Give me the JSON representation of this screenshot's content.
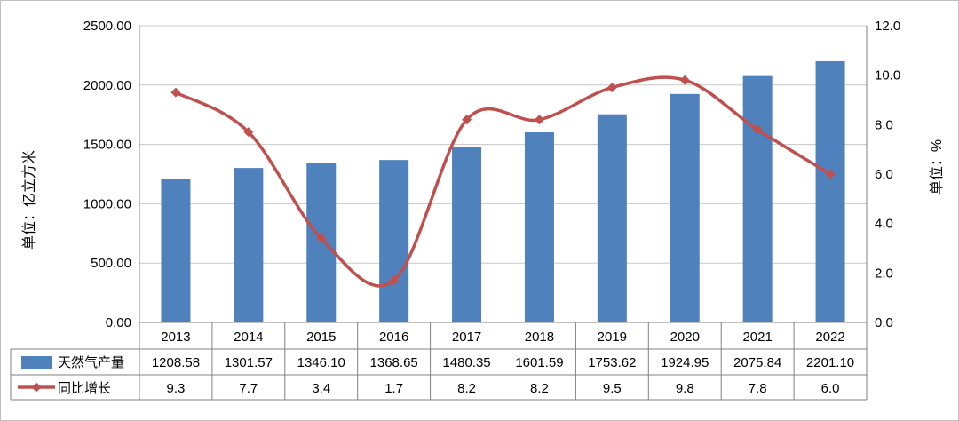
{
  "chart_data": {
    "type": "bar",
    "categories": [
      "2013",
      "2014",
      "2015",
      "2016",
      "2017",
      "2018",
      "2019",
      "2020",
      "2021",
      "2022"
    ],
    "series": [
      {
        "name": "天然气产量",
        "type": "bar",
        "axis": "left",
        "color": "#4f81bd",
        "values": [
          1208.58,
          1301.57,
          1346.1,
          1368.65,
          1480.35,
          1601.59,
          1753.62,
          1924.95,
          2075.84,
          2201.1
        ],
        "labels": [
          "1208.58",
          "1301.57",
          "1346.10",
          "1368.65",
          "1480.35",
          "1601.59",
          "1753.62",
          "1924.95",
          "2075.84",
          "2201.10"
        ]
      },
      {
        "name": "同比增长",
        "type": "line",
        "axis": "right",
        "color": "#c0504d",
        "values": [
          9.3,
          7.7,
          3.4,
          1.7,
          8.2,
          8.2,
          9.5,
          9.8,
          7.8,
          6.0
        ],
        "labels": [
          "9.3",
          "7.7",
          "3.4",
          "1.7",
          "8.2",
          "8.2",
          "9.5",
          "9.8",
          "7.8",
          "6.0"
        ]
      }
    ],
    "ylabel": "单位：亿立方米",
    "y2label": "单位：%",
    "ylim": [
      0,
      2500
    ],
    "y2lim": [
      0,
      12
    ],
    "yticks": [
      "0.00",
      "500.00",
      "1000.00",
      "1500.00",
      "2000.00",
      "2500.00"
    ],
    "y2ticks": [
      "0.0",
      "2.0",
      "4.0",
      "6.0",
      "8.0",
      "10.0",
      "12.0"
    ],
    "grid": true,
    "legend": "data-table"
  }
}
